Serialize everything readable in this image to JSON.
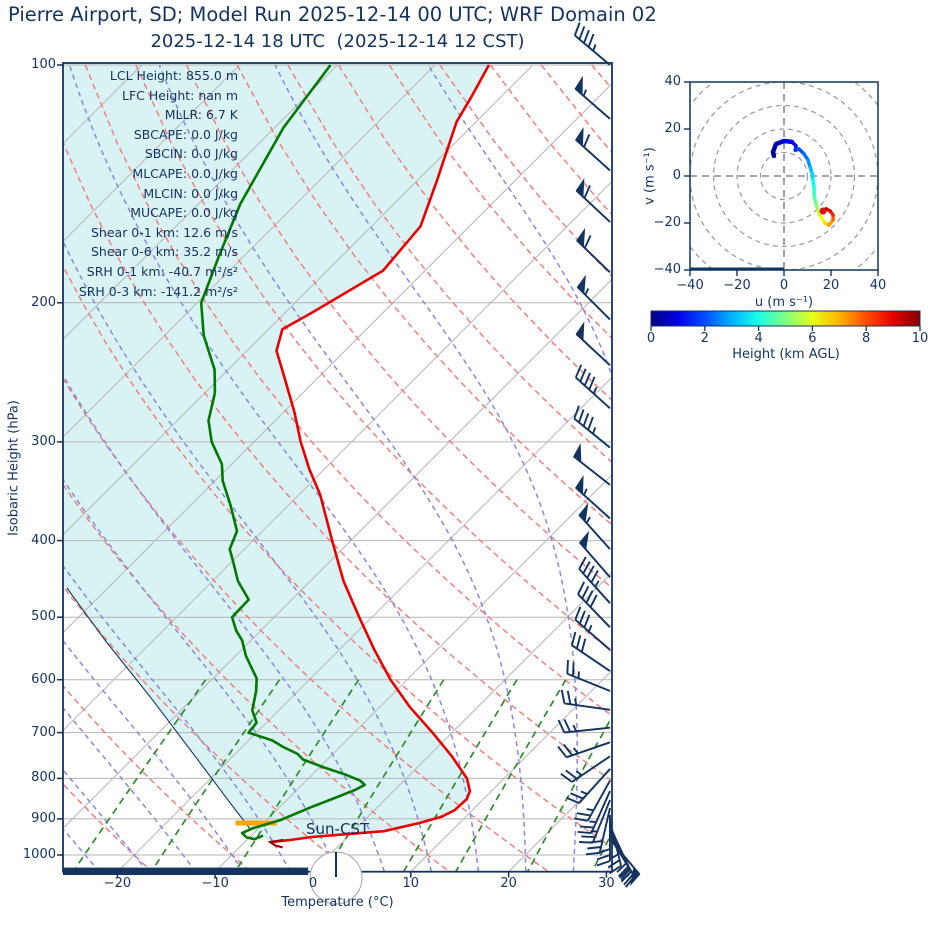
{
  "header": {
    "title": "Pierre Airport, SD; Model Run 2025-12-14 00 UTC; WRF Domain 02",
    "subtitle": "2025-12-14 18 UTC  (2025-12-14 12 CST)"
  },
  "skewt": {
    "ylabel": "Isobaric Height (hPa)",
    "xlabel": "Temperature (°C)",
    "yticks": [
      100,
      200,
      300,
      400,
      500,
      600,
      700,
      800,
      900,
      1000
    ],
    "xticks": [
      "−20",
      "−10",
      "0",
      "10",
      "20",
      "30"
    ],
    "sun_label": "Sun-CST",
    "stats": [
      "LCL Height: 855.0 m",
      "LFC Height: nan m",
      "MLLR: 6.7 K",
      "SBCAPE: 0.0 J/kg",
      "SBCIN: 0.0 J/kg",
      "MLCAPE: 0.0 J/kg",
      "MLCIN: 0.0 J/kg",
      "MUCAPE: 0.0 J/kg",
      "Shear 0-1 km: 12.6 m/s",
      "Shear 0-6 km: 35.2 m/s",
      "SRH 0-1 km: -40.7 m²/s²",
      "SRH 0-3 km: -141.2 m²/s²"
    ]
  },
  "hodograph": {
    "xlabel": "u (m s⁻¹)",
    "ylabel": "v (m s⁻¹)",
    "xticks": [
      "−40",
      "−20",
      "0",
      "20",
      "40"
    ],
    "yticks": [
      "−40",
      "−20",
      "0",
      "20",
      "40"
    ]
  },
  "colorbar": {
    "label": "Height (km AGL)",
    "ticks": [
      0,
      2,
      4,
      6,
      8,
      10
    ],
    "min": 0,
    "max": 10
  },
  "colors": {
    "accent": "#14335f",
    "temperature": "#e60000",
    "temperature_tail": "#990000",
    "dewpoint": "#007800",
    "parcel": "#14335f",
    "lcl_marker": "#ffa500",
    "shade_fill": "#d9f3f5",
    "dry_adiabat": "#f08080",
    "moist_adiabat": "#8888dd",
    "mixing_ratio": "#2e8b2e",
    "isotherm": "#bbbbbb",
    "grid": "#b5b5b5",
    "ring": "#999999",
    "sun_circle": "#b0b0b0",
    "marker_red": "#dd1111"
  },
  "chart_data": [
    {
      "type": "line",
      "title": "Skew-T log-p sounding",
      "xlabel": "Temperature (°C)",
      "ylabel": "Isobaric Height (hPa)",
      "x_range_C": [
        -25.6,
        30.6
      ],
      "p_range_hPa": [
        100,
        1050
      ],
      "skew_deg": 45,
      "grid": "on",
      "series": [
        {
          "name": "temperature",
          "points": [
            [
              100,
              -64.5
            ],
            [
              110,
              -63
            ],
            [
              118,
              -62
            ],
            [
              140,
              -58
            ],
            [
              160,
              -55
            ],
            [
              182,
              -54.3
            ],
            [
              206,
              -57.3
            ],
            [
              216,
              -58.6
            ],
            [
              230,
              -57
            ],
            [
              250,
              -53.2
            ],
            [
              275,
              -48.9
            ],
            [
              300,
              -45.2
            ],
            [
              325,
              -41.5
            ],
            [
              350,
              -37.8
            ],
            [
              400,
              -31.9
            ],
            [
              450,
              -26.6
            ],
            [
              500,
              -21.3
            ],
            [
              550,
              -16.4
            ],
            [
              600,
              -11.7
            ],
            [
              650,
              -6.9
            ],
            [
              700,
              -2.0
            ],
            [
              750,
              2.4
            ],
            [
              800,
              6.2
            ],
            [
              830,
              7.8
            ],
            [
              850,
              8.3
            ],
            [
              877,
              8.2
            ],
            [
              895,
              7.5
            ],
            [
              911,
              5.9
            ],
            [
              933,
              3.1
            ],
            [
              941,
              -0.3
            ],
            [
              949,
              -3.7
            ],
            [
              957,
              -5.5
            ],
            [
              963,
              -7.4
            ]
          ]
        },
        {
          "name": "temperature_tail",
          "points": [
            [
              957,
              -6.3
            ],
            [
              963,
              -7.4
            ],
            [
              972,
              -6.6
            ],
            [
              978,
              -5.6
            ]
          ]
        },
        {
          "name": "dewpoint",
          "points": [
            [
              100,
              -80.7
            ],
            [
              120,
              -79.1
            ],
            [
              150,
              -75.7
            ],
            [
              175,
              -72.5
            ],
            [
              200,
              -69.6
            ],
            [
              220,
              -66
            ],
            [
              243,
              -61.4
            ],
            [
              260,
              -59
            ],
            [
              282,
              -56.8
            ],
            [
              300,
              -54.3
            ],
            [
              320,
              -51
            ],
            [
              336,
              -49.2
            ],
            [
              360,
              -46
            ],
            [
              389,
              -42.6
            ],
            [
              410,
              -41.5
            ],
            [
              424,
              -40.0
            ],
            [
              450,
              -37.4
            ],
            [
              475,
              -34.4
            ],
            [
              500,
              -34.3
            ],
            [
              520,
              -32.5
            ],
            [
              535,
              -30.9
            ],
            [
              560,
              -28.9
            ],
            [
              598,
              -25.5
            ],
            [
              620,
              -24.3
            ],
            [
              656,
              -22.7
            ],
            [
              680,
              -21.0
            ],
            [
              700,
              -20.8
            ],
            [
              716,
              -17.6
            ],
            [
              730,
              -15.8
            ],
            [
              745,
              -13.6
            ],
            [
              757,
              -12.5
            ],
            [
              775,
              -9.5
            ],
            [
              790,
              -6.8
            ],
            [
              805,
              -4.5
            ],
            [
              815,
              -3.6
            ],
            [
              826,
              -4.0
            ],
            [
              847,
              -5.3
            ],
            [
              870,
              -6.8
            ],
            [
              903,
              -8.6
            ],
            [
              925,
              -10.6
            ],
            [
              938,
              -11.2
            ],
            [
              950,
              -10.3
            ],
            [
              955,
              -9.3
            ],
            [
              945,
              -8.8
            ]
          ]
        },
        {
          "name": "parcel",
          "points": [
            [
              459,
              -54.2
            ],
            [
              535,
              -44.9
            ],
            [
              636,
              -34.0
            ],
            [
              758,
              -23.2
            ],
            [
              851,
              -16.1
            ],
            [
              930,
              -10.6
            ]
          ]
        }
      ],
      "lcl_marker": {
        "pressure_hPa": 911,
        "temperature_C_from": -12.9,
        "temperature_C_to": -8.7
      },
      "below_ground_bar": {
        "x_from_C": -25.6,
        "x_to_C": -0.5
      },
      "background": {
        "isotherms_C": {
          "from": -110,
          "to": 40,
          "step": 10
        },
        "dry_adiabats_C": {
          "from": -30,
          "to": 160,
          "step": 10
        },
        "moist_adiabats_C": {
          "from": -35,
          "to": 40,
          "step": 5
        },
        "mixing_ratio_g_kg": [
          0.5,
          1,
          2,
          4,
          7,
          10,
          16,
          24
        ],
        "mixing_ratio_top_hPa": 600
      },
      "wind_barbs_p_dir_kt": [
        [
          100,
          310,
          45
        ],
        [
          117,
          311,
          55
        ],
        [
          136,
          312,
          60
        ],
        [
          158,
          313,
          60
        ],
        [
          183,
          314,
          60
        ],
        [
          210,
          315,
          55
        ],
        [
          240,
          313,
          50
        ],
        [
          272,
          312,
          45
        ],
        [
          305,
          309,
          47
        ],
        [
          340,
          308,
          52
        ],
        [
          375,
          312,
          54
        ],
        [
          410,
          318,
          55
        ],
        [
          445,
          319,
          51
        ],
        [
          480,
          318,
          45
        ],
        [
          515,
          316,
          40
        ],
        [
          550,
          311,
          35
        ],
        [
          585,
          304,
          30
        ],
        [
          620,
          292,
          27
        ],
        [
          655,
          278,
          24
        ],
        [
          690,
          264,
          23
        ],
        [
          720,
          251,
          23
        ],
        [
          750,
          236,
          24
        ],
        [
          778,
          222,
          25
        ],
        [
          805,
          209,
          26
        ],
        [
          830,
          204,
          23
        ],
        [
          852,
          202,
          27
        ],
        [
          872,
          193,
          29
        ],
        [
          890,
          180,
          29
        ],
        [
          906,
          166,
          27
        ],
        [
          920,
          155,
          22
        ],
        [
          932,
          153,
          18
        ],
        [
          942,
          150,
          18
        ],
        [
          950,
          148,
          17
        ],
        [
          955,
          140,
          50
        ]
      ]
    },
    {
      "type": "line",
      "title": "Hodograph",
      "xlabel": "u (m s⁻¹)",
      "ylabel": "v (m s⁻¹)",
      "xlim": [
        -40,
        40
      ],
      "ylim": [
        -40,
        40
      ],
      "rings": [
        10,
        20,
        30,
        40,
        50,
        60
      ],
      "trace_u_v_heightkm": [
        [
          -4.3,
          8.5,
          0
        ],
        [
          -4.7,
          10.2,
          0.2
        ],
        [
          -3.4,
          13.6,
          0.5
        ],
        [
          0,
          14.9,
          0.8
        ],
        [
          3.4,
          14.5,
          1.1
        ],
        [
          5.1,
          12.8,
          1.4
        ],
        [
          4.8,
          11.0,
          1.6
        ],
        [
          6.4,
          11.5,
          1.9
        ],
        [
          8.5,
          9.4,
          2.2
        ],
        [
          10.2,
          6.8,
          2.5
        ],
        [
          11.1,
          3.8,
          2.9
        ],
        [
          11.9,
          1.3,
          3.2
        ],
        [
          12.3,
          -1.7,
          3.6
        ],
        [
          12.8,
          -5.1,
          4.0
        ],
        [
          12.8,
          -8.5,
          4.4
        ],
        [
          13.6,
          -11.9,
          4.9
        ],
        [
          14.5,
          -14.9,
          5.4
        ],
        [
          15.7,
          -17.4,
          5.9
        ],
        [
          17.4,
          -20.0,
          6.4
        ],
        [
          19.1,
          -20.9,
          6.9
        ],
        [
          20.9,
          -18.7,
          7.5
        ],
        [
          20.9,
          -16.6,
          8.1
        ],
        [
          19.6,
          -14.9,
          8.7
        ],
        [
          17.9,
          -14.0,
          9.3
        ],
        [
          16.6,
          -14.9,
          10
        ]
      ],
      "marker_u_v": [
        16.6,
        -14.9
      ],
      "baseline_bar": {
        "v": -40,
        "u_from": -40,
        "u_to": 0
      },
      "colormap": "jet",
      "colorbar_label": "Height (km AGL)",
      "colorbar_ticks": [
        0,
        2,
        4,
        6,
        8,
        10
      ]
    }
  ]
}
